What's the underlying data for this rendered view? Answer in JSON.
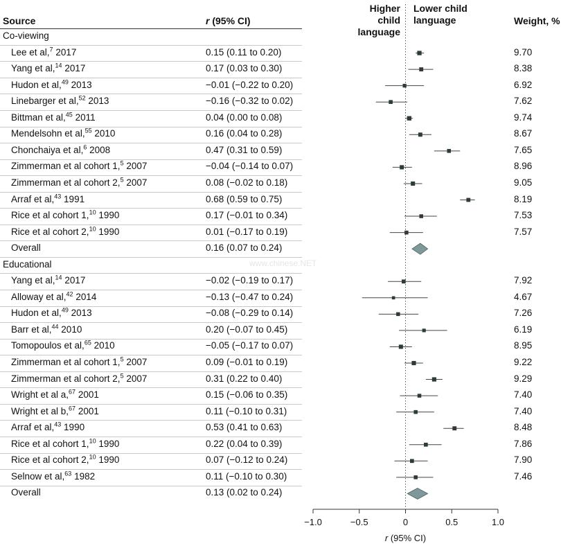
{
  "headers": {
    "source": "Source",
    "ci": "r (95% CI)",
    "higher": [
      "Higher child",
      "language"
    ],
    "lower": [
      "Lower child",
      "language"
    ],
    "weight": "Weight, %"
  },
  "watermark": "www.chinese.NET",
  "chart_data": {
    "type": "forest",
    "title": "",
    "xlabel": "r (95% CI)",
    "xlim": [
      -1.0,
      1.0
    ],
    "xticks": [
      -1.0,
      -0.5,
      0,
      0.5,
      1.0
    ],
    "xtick_labels": [
      "−1.0",
      "−0.5",
      "0",
      "0.5",
      "1.0"
    ],
    "groups": [
      {
        "name": "Co-viewing",
        "studies": [
          {
            "author": "Lee et al,",
            "ref": "7",
            "year": "2017",
            "r": 0.15,
            "lo": 0.11,
            "hi": 0.2,
            "ci_text": "0.15 (0.11 to 0.20)",
            "weight": "9.70"
          },
          {
            "author": "Yang et al,",
            "ref": "14",
            "year": "2017",
            "r": 0.17,
            "lo": 0.03,
            "hi": 0.3,
            "ci_text": "0.17 (0.03 to 0.30)",
            "weight": "8.38"
          },
          {
            "author": "Hudon et al,",
            "ref": "49",
            "year": "2013",
            "r": -0.01,
            "lo": -0.22,
            "hi": 0.2,
            "ci_text": "−0.01 (−0.22 to 0.20)",
            "weight": "6.92"
          },
          {
            "author": "Linebarger et al,",
            "ref": "52",
            "year": "2013",
            "r": -0.16,
            "lo": -0.32,
            "hi": 0.02,
            "ci_text": "−0.16 (−0.32 to 0.02)",
            "weight": "7.62"
          },
          {
            "author": "Bittman et al,",
            "ref": "45",
            "year": "2011",
            "r": 0.04,
            "lo": 0.0,
            "hi": 0.08,
            "ci_text": "0.04 (0.00 to 0.08)",
            "weight": "9.74"
          },
          {
            "author": "Mendelsohn et al,",
            "ref": "55",
            "year": "2010",
            "r": 0.16,
            "lo": 0.04,
            "hi": 0.28,
            "ci_text": "0.16 (0.04 to 0.28)",
            "weight": "8.67"
          },
          {
            "author": "Chonchaiya et al,",
            "ref": "6",
            "year": "2008",
            "r": 0.47,
            "lo": 0.31,
            "hi": 0.59,
            "ci_text": "0.47 (0.31 to 0.59)",
            "weight": "7.65"
          },
          {
            "author": "Zimmerman et al cohort 1,",
            "ref": "5",
            "year": "2007",
            "r": -0.04,
            "lo": -0.14,
            "hi": 0.07,
            "ci_text": "−0.04 (−0.14 to 0.07)",
            "weight": "8.96"
          },
          {
            "author": "Zimmerman et al cohort 2,",
            "ref": "5",
            "year": "2007",
            "r": 0.08,
            "lo": -0.02,
            "hi": 0.18,
            "ci_text": "0.08 (−0.02 to 0.18)",
            "weight": "9.05"
          },
          {
            "author": "Arraf et al,",
            "ref": "43",
            "year": "1991",
            "r": 0.68,
            "lo": 0.59,
            "hi": 0.75,
            "ci_text": "0.68 (0.59 to 0.75)",
            "weight": "8.19"
          },
          {
            "author": "Rice et al cohort 1,",
            "ref": "10",
            "year": "1990",
            "r": 0.17,
            "lo": -0.01,
            "hi": 0.34,
            "ci_text": "0.17 (−0.01 to 0.34)",
            "weight": "7.53"
          },
          {
            "author": "Rice et al cohort 2,",
            "ref": "10",
            "year": "1990",
            "r": 0.01,
            "lo": -0.17,
            "hi": 0.19,
            "ci_text": "0.01 (−0.17 to 0.19)",
            "weight": "7.57"
          }
        ],
        "overall": {
          "label": "Overall",
          "r": 0.16,
          "lo": 0.07,
          "hi": 0.24,
          "ci_text": "0.16 (0.07 to 0.24)"
        }
      },
      {
        "name": "Educational",
        "studies": [
          {
            "author": "Yang et al,",
            "ref": "14",
            "year": "2017",
            "r": -0.02,
            "lo": -0.19,
            "hi": 0.17,
            "ci_text": "−0.02 (−0.19 to 0.17)",
            "weight": "7.92"
          },
          {
            "author": "Alloway et al,",
            "ref": "42",
            "year": "2014",
            "r": -0.13,
            "lo": -0.47,
            "hi": 0.24,
            "ci_text": "−0.13 (−0.47 to 0.24)",
            "weight": "4.67"
          },
          {
            "author": "Hudon et al,",
            "ref": "49",
            "year": "2013",
            "r": -0.08,
            "lo": -0.29,
            "hi": 0.14,
            "ci_text": "−0.08 (−0.29 to 0.14)",
            "weight": "7.26"
          },
          {
            "author": "Barr et al,",
            "ref": "44",
            "year": "2010",
            "r": 0.2,
            "lo": -0.07,
            "hi": 0.45,
            "ci_text": "0.20 (−0.07 to 0.45)",
            "weight": "6.19"
          },
          {
            "author": "Tomopoulos et al,",
            "ref": "65",
            "year": "2010",
            "r": -0.05,
            "lo": -0.17,
            "hi": 0.07,
            "ci_text": "−0.05 (−0.17 to 0.07)",
            "weight": "8.95"
          },
          {
            "author": "Zimmerman et al cohort 1,",
            "ref": "5",
            "year": "2007",
            "r": 0.09,
            "lo": -0.01,
            "hi": 0.19,
            "ci_text": "0.09 (−0.01 to 0.19)",
            "weight": "9.22"
          },
          {
            "author": "Zimmerman et al cohort 2,",
            "ref": "5",
            "year": "2007",
            "r": 0.31,
            "lo": 0.22,
            "hi": 0.4,
            "ci_text": "0.31 (0.22 to 0.40)",
            "weight": "9.29"
          },
          {
            "author": "Wright et al a,",
            "ref": "67",
            "year": "2001",
            "r": 0.15,
            "lo": -0.06,
            "hi": 0.35,
            "ci_text": "0.15 (−0.06 to 0.35)",
            "weight": "7.40"
          },
          {
            "author": "Wright et al b,",
            "ref": "67",
            "year": "2001",
            "r": 0.11,
            "lo": -0.1,
            "hi": 0.31,
            "ci_text": "0.11 (−0.10 to 0.31)",
            "weight": "7.40"
          },
          {
            "author": "Arraf et al,",
            "ref": "43",
            "year": "1990",
            "r": 0.53,
            "lo": 0.41,
            "hi": 0.63,
            "ci_text": "0.53 (0.41 to 0.63)",
            "weight": "8.48"
          },
          {
            "author": "Rice et al cohort 1,",
            "ref": "10",
            "year": "1990",
            "r": 0.22,
            "lo": 0.04,
            "hi": 0.39,
            "ci_text": "0.22 (0.04 to 0.39)",
            "weight": "7.86"
          },
          {
            "author": "Rice et al cohort 2,",
            "ref": "10",
            "year": "1990",
            "r": 0.07,
            "lo": -0.12,
            "hi": 0.24,
            "ci_text": "0.07 (−0.12 to 0.24)",
            "weight": "7.90"
          },
          {
            "author": "Selnow et al,",
            "ref": "63",
            "year": "1982",
            "r": 0.11,
            "lo": -0.1,
            "hi": 0.3,
            "ci_text": "0.11 (−0.10 to 0.30)",
            "weight": "7.46"
          }
        ],
        "overall": {
          "label": "Overall",
          "r": 0.13,
          "lo": 0.02,
          "hi": 0.24,
          "ci_text": "0.13 (0.02 to 0.24)"
        }
      }
    ]
  },
  "colors": {
    "marker": "#2e3b39",
    "diamond": "#7f9899",
    "line": "#444444",
    "rule": "#c8c8c8"
  }
}
